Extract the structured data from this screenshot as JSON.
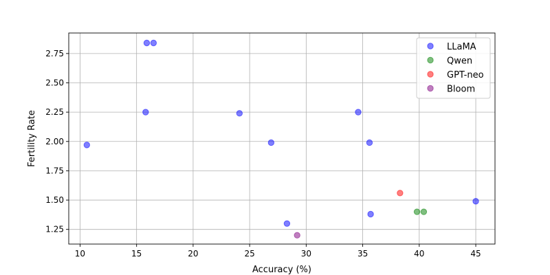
{
  "chart_data": {
    "type": "scatter",
    "title": "",
    "xlabel": "Accuracy (%)",
    "ylabel": "Fertility Rate",
    "xlim": [
      9,
      46.7
    ],
    "ylim": [
      1.125,
      2.925
    ],
    "xticks": [
      10,
      15,
      20,
      25,
      30,
      35,
      40,
      45
    ],
    "yticks": [
      1.25,
      1.5,
      1.75,
      2.0,
      2.25,
      2.5,
      2.75
    ],
    "grid": true,
    "legend_position": "top-right",
    "series": [
      {
        "name": "LLaMA",
        "color": "#0000ff",
        "points": [
          {
            "x": 15.9,
            "y": 2.84
          },
          {
            "x": 16.5,
            "y": 2.84
          },
          {
            "x": 15.8,
            "y": 2.25
          },
          {
            "x": 24.1,
            "y": 2.24
          },
          {
            "x": 34.6,
            "y": 2.25
          },
          {
            "x": 10.6,
            "y": 1.97
          },
          {
            "x": 26.9,
            "y": 1.99
          },
          {
            "x": 35.6,
            "y": 1.99
          },
          {
            "x": 28.3,
            "y": 1.3
          },
          {
            "x": 35.7,
            "y": 1.38
          },
          {
            "x": 45.0,
            "y": 1.49
          }
        ]
      },
      {
        "name": "Qwen",
        "color": "#008000",
        "points": [
          {
            "x": 39.8,
            "y": 1.4
          },
          {
            "x": 40.4,
            "y": 1.4
          }
        ]
      },
      {
        "name": "GPT-neo",
        "color": "#ff0000",
        "points": [
          {
            "x": 38.3,
            "y": 1.56
          }
        ]
      },
      {
        "name": "Bloom",
        "color": "#800080",
        "points": [
          {
            "x": 29.2,
            "y": 1.2
          }
        ]
      }
    ]
  }
}
